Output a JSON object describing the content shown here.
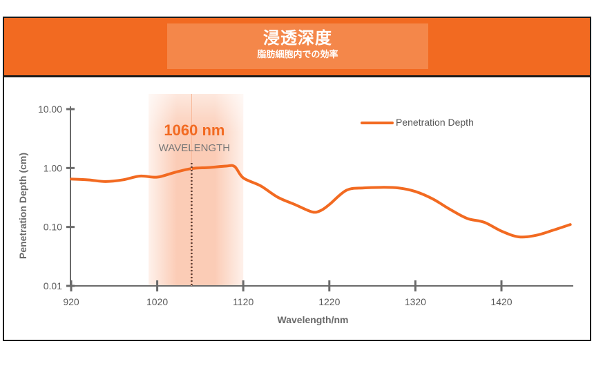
{
  "header": {
    "title": "浸透深度",
    "subtitle": "脂肪細胞内での効率"
  },
  "colors": {
    "accent": "#f26a21",
    "highlight": "#f8a27a",
    "axis": "#6a6a6a"
  },
  "chart_data": {
    "type": "line",
    "xlabel": "Wavelength/nm",
    "ylabel": "Penetration Depth (cm)",
    "xlim": [
      920,
      1500
    ],
    "ylim": [
      0.01,
      10
    ],
    "yscale": "log",
    "xticks": [
      920,
      1020,
      1120,
      1220,
      1320,
      1420
    ],
    "yticks": [
      {
        "value": 10,
        "label": "10.00"
      },
      {
        "value": 1,
        "label": "1.00"
      },
      {
        "value": 0.1,
        "label": "0.10"
      },
      {
        "value": 0.01,
        "label": "0.01"
      }
    ],
    "grid": false,
    "legend_position": "top-right",
    "series": [
      {
        "name": "Penetration Depth",
        "color": "#f26a21",
        "x": [
          920,
          940,
          960,
          980,
          1000,
          1020,
          1040,
          1060,
          1080,
          1100,
          1110,
          1120,
          1140,
          1160,
          1180,
          1200,
          1210,
          1220,
          1240,
          1260,
          1280,
          1300,
          1320,
          1340,
          1360,
          1380,
          1400,
          1420,
          1440,
          1460,
          1480,
          1500
        ],
        "y": [
          0.65,
          0.63,
          0.59,
          0.63,
          0.73,
          0.7,
          0.84,
          0.98,
          1.02,
          1.08,
          1.06,
          0.68,
          0.5,
          0.32,
          0.24,
          0.18,
          0.19,
          0.24,
          0.42,
          0.46,
          0.47,
          0.46,
          0.4,
          0.3,
          0.2,
          0.14,
          0.12,
          0.085,
          0.068,
          0.072,
          0.088,
          0.11
        ]
      }
    ],
    "annotation": {
      "x": 1060,
      "value_label": "1060 nm",
      "text": "WAVELENGTH",
      "band": [
        1010,
        1120
      ]
    }
  }
}
